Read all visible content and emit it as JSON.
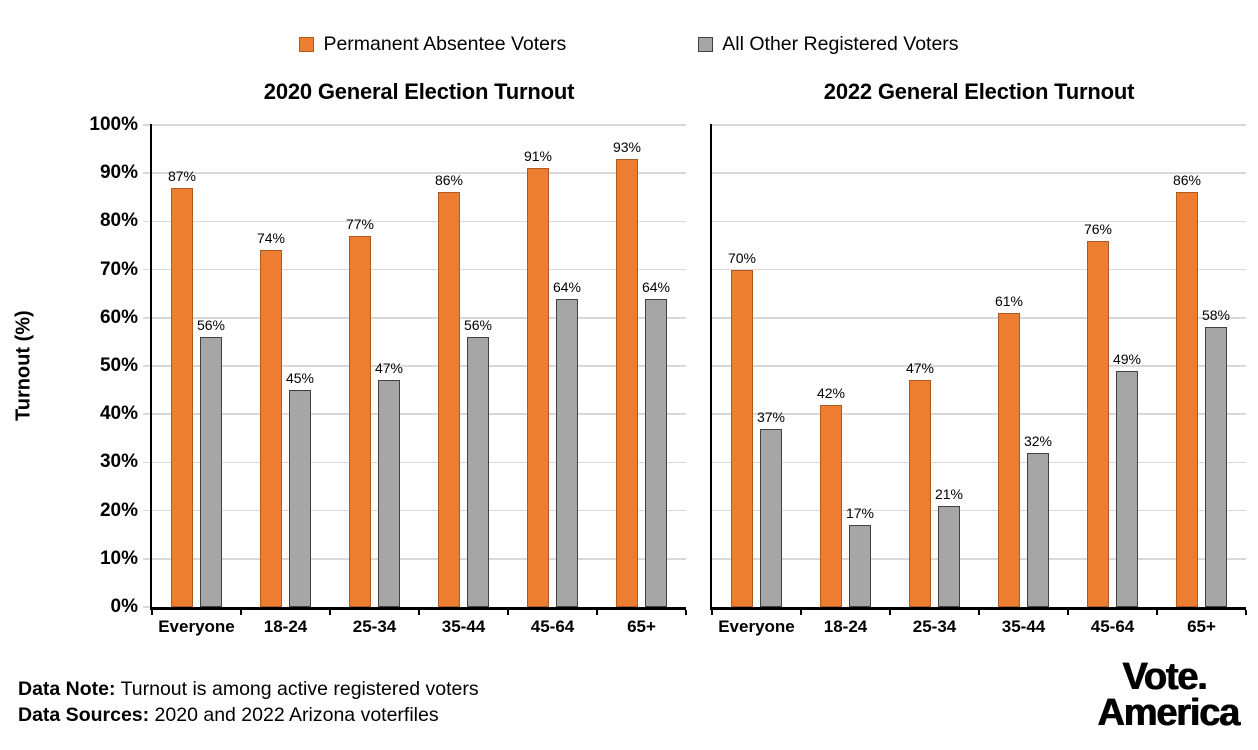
{
  "page": {
    "background": "#FFFFFF"
  },
  "colors": {
    "accent_orange": "#ED7D31",
    "accent_orange_border": "#AE5A21",
    "gray": "#A6A6A6",
    "gray_border": "#404040",
    "gridline": "#D9D9D9",
    "axis": "#000000",
    "text": "#000000"
  },
  "legend": {
    "items": [
      {
        "label": "Permanent Absentee Voters",
        "color": "#ED7D31",
        "border": "#AE5A21"
      },
      {
        "label": "All Other Registered Voters",
        "color": "#A6A6A6",
        "border": "#404040"
      }
    ]
  },
  "ylabel": "Turnout (%)",
  "chart_data": [
    {
      "type": "bar",
      "title": "2020 General Election Turnout",
      "categories": [
        "Everyone",
        "18-24",
        "25-34",
        "35-44",
        "45-64",
        "65+"
      ],
      "series": [
        {
          "name": "Permanent Absentee Voters",
          "color": "#ED7D31",
          "border": "#AE5A21",
          "values": [
            87,
            74,
            77,
            86,
            91,
            93
          ]
        },
        {
          "name": "All Other Registered Voters",
          "color": "#A6A6A6",
          "border": "#404040",
          "values": [
            56,
            45,
            47,
            56,
            64,
            64
          ]
        }
      ],
      "ylabel": "Turnout (%)",
      "ylim": [
        0,
        100
      ],
      "ytick_step": 10,
      "ytick_suffix": "%",
      "grid": true,
      "data_labels": true,
      "data_label_suffix": "%",
      "ytick_labels_visible": true,
      "legend_position": "top"
    },
    {
      "type": "bar",
      "title": "2022 General Election Turnout",
      "categories": [
        "Everyone",
        "18-24",
        "25-34",
        "35-44",
        "45-64",
        "65+"
      ],
      "series": [
        {
          "name": "Permanent Absentee Voters",
          "color": "#ED7D31",
          "border": "#AE5A21",
          "values": [
            70,
            42,
            47,
            61,
            76,
            86
          ]
        },
        {
          "name": "All Other Registered Voters",
          "color": "#A6A6A6",
          "border": "#404040",
          "values": [
            37,
            17,
            21,
            32,
            49,
            58
          ]
        }
      ],
      "ylabel": "Turnout (%)",
      "ylim": [
        0,
        100
      ],
      "ytick_step": 10,
      "ytick_suffix": "%",
      "grid": true,
      "data_labels": true,
      "data_label_suffix": "%",
      "ytick_labels_visible": false,
      "legend_position": "top"
    }
  ],
  "footer": {
    "note_label": "Data Note:",
    "note_text": " Turnout is among active registered voters",
    "sources_label": "Data Sources:",
    "sources_text": " 2020 and 2022 Arizona voterfiles"
  },
  "logo": {
    "line1": "Vote.",
    "line2": "America"
  }
}
